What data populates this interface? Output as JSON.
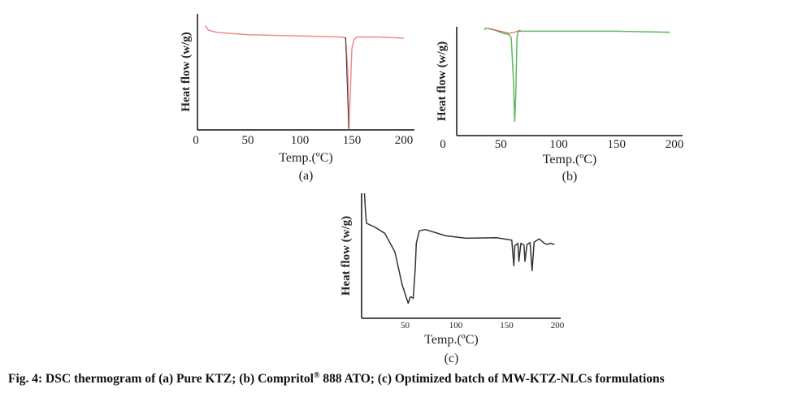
{
  "chart_data": [
    {
      "type": "line",
      "panel": "(a)",
      "xlabel": "Temp.(ºC)",
      "ylabel": "Heat flow (w/g)",
      "xticks": [
        0,
        50,
        100,
        150,
        200
      ],
      "xlim": [
        0,
        200
      ],
      "ylim": [
        0,
        1
      ],
      "color": "#f08a8a",
      "series": [
        {
          "name": "Pure KTZ",
          "color": "#f08a8a",
          "points": [
            [
              9,
              0.9
            ],
            [
              12,
              0.86
            ],
            [
              20,
              0.84
            ],
            [
              50,
              0.82
            ],
            [
              100,
              0.81
            ],
            [
              140,
              0.8
            ],
            [
              144,
              0.79
            ],
            [
              146,
              0.5
            ],
            [
              147,
              0.01
            ],
            [
              148,
              0.2
            ],
            [
              150,
              0.7
            ],
            [
              152,
              0.78
            ],
            [
              155,
              0.8
            ],
            [
              175,
              0.8
            ],
            [
              200,
              0.79
            ]
          ]
        },
        {
          "name": "onset",
          "color": "#333333",
          "points": [
            [
              144,
              0.8
            ],
            [
              147,
              0.01
            ]
          ]
        }
      ]
    },
    {
      "type": "line",
      "panel": "(b)",
      "xlabel": "Temp.(ºC)",
      "ylabel": "Heat flow (w/g)",
      "xticks": [
        0,
        50,
        100,
        150,
        200
      ],
      "xlim": [
        0,
        200
      ],
      "ylim": [
        0,
        1
      ],
      "color": "#5cb85c",
      "series": [
        {
          "name": "Compritol 888 ATO",
          "color": "#5cb85c",
          "points": [
            [
              36,
              0.97
            ],
            [
              37,
              0.99
            ],
            [
              45,
              0.97
            ],
            [
              52,
              0.94
            ],
            [
              57,
              0.93
            ],
            [
              59,
              0.9
            ],
            [
              61,
              0.5
            ],
            [
              62,
              0.13
            ],
            [
              63,
              0.4
            ],
            [
              64,
              0.9
            ],
            [
              65,
              0.96
            ],
            [
              80,
              0.96
            ],
            [
              150,
              0.96
            ],
            [
              196,
              0.95
            ]
          ]
        },
        {
          "name": "baseline",
          "color": "#e05050",
          "points": [
            [
              40,
              0.98
            ],
            [
              50,
              0.96
            ],
            [
              57,
              0.94
            ],
            [
              62,
              0.95
            ],
            [
              67,
              0.97
            ]
          ]
        }
      ]
    },
    {
      "type": "line",
      "panel": "(c)",
      "xlabel": "Temp.(ºC)",
      "ylabel": "Heat flow (w/g)",
      "xticks": [
        50,
        100,
        150,
        200
      ],
      "xlim": [
        0,
        200
      ],
      "ylim": [
        0,
        1
      ],
      "color": "#333333",
      "series": [
        {
          "name": "MW-KTZ-NLCs",
          "color": "#333333",
          "points": [
            [
              10,
              1.0
            ],
            [
              11,
              0.85
            ],
            [
              12,
              0.76
            ],
            [
              20,
              0.73
            ],
            [
              30,
              0.68
            ],
            [
              40,
              0.53
            ],
            [
              47,
              0.27
            ],
            [
              53,
              0.12
            ],
            [
              55,
              0.17
            ],
            [
              56,
              0.17
            ],
            [
              58,
              0.16
            ],
            [
              60,
              0.4
            ],
            [
              61,
              0.6
            ],
            [
              64,
              0.7
            ],
            [
              70,
              0.71
            ],
            [
              90,
              0.66
            ],
            [
              110,
              0.64
            ],
            [
              140,
              0.645
            ],
            [
              155,
              0.625
            ],
            [
              157,
              0.42
            ],
            [
              158,
              0.58
            ],
            [
              161,
              0.6
            ],
            [
              162,
              0.455
            ],
            [
              164,
              0.6
            ],
            [
              167,
              0.585
            ],
            [
              168,
              0.455
            ],
            [
              170,
              0.59
            ],
            [
              173,
              0.605
            ],
            [
              175,
              0.38
            ],
            [
              177,
              0.61
            ],
            [
              182,
              0.635
            ],
            [
              187,
              0.6
            ],
            [
              190,
              0.59
            ],
            [
              193,
              0.6
            ],
            [
              197,
              0.59
            ]
          ]
        }
      ]
    }
  ],
  "caption": {
    "prefix": "Fig. 4: DSC thermogram of (a) Pure KTZ; (b) Compritol",
    "reg": "®",
    "suffix": " 888 ATO; (c) Optimized batch of MW-KTZ-NLCs formulations"
  }
}
